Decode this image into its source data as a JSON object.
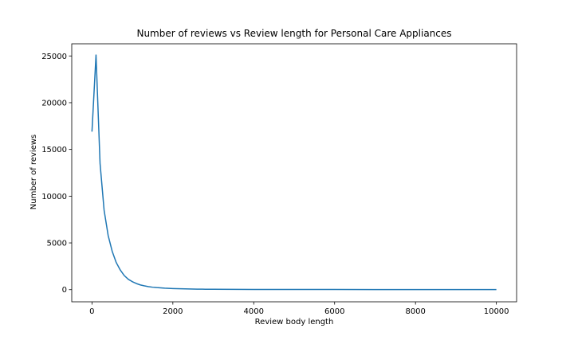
{
  "chart_data": {
    "type": "line",
    "title": "Number of reviews vs Review length for Personal Care Appliances",
    "xlabel": "Review body length",
    "ylabel": "Number of reviews",
    "xlim": [
      -500,
      10500
    ],
    "ylim": [
      -1300,
      26300
    ],
    "xticks": [
      0,
      2000,
      4000,
      6000,
      8000,
      10000
    ],
    "yticks": [
      0,
      5000,
      10000,
      15000,
      20000,
      25000
    ],
    "grid": false,
    "line_color": "#1f77b4",
    "series": [
      {
        "x": [
          0,
          100,
          200,
          300,
          400,
          500,
          600,
          700,
          800,
          900,
          1000,
          1100,
          1200,
          1300,
          1400,
          1500,
          1600,
          1800,
          2000,
          2200,
          2400,
          2600,
          2800,
          3000,
          3500,
          4000,
          5000,
          6000,
          7000,
          8000,
          9000,
          10000
        ],
        "y": [
          16900,
          25100,
          13500,
          8500,
          5800,
          4100,
          2900,
          2100,
          1500,
          1100,
          850,
          650,
          500,
          400,
          320,
          260,
          220,
          160,
          120,
          90,
          70,
          55,
          45,
          40,
          30,
          25,
          18,
          15,
          12,
          10,
          8,
          5
        ]
      }
    ]
  }
}
